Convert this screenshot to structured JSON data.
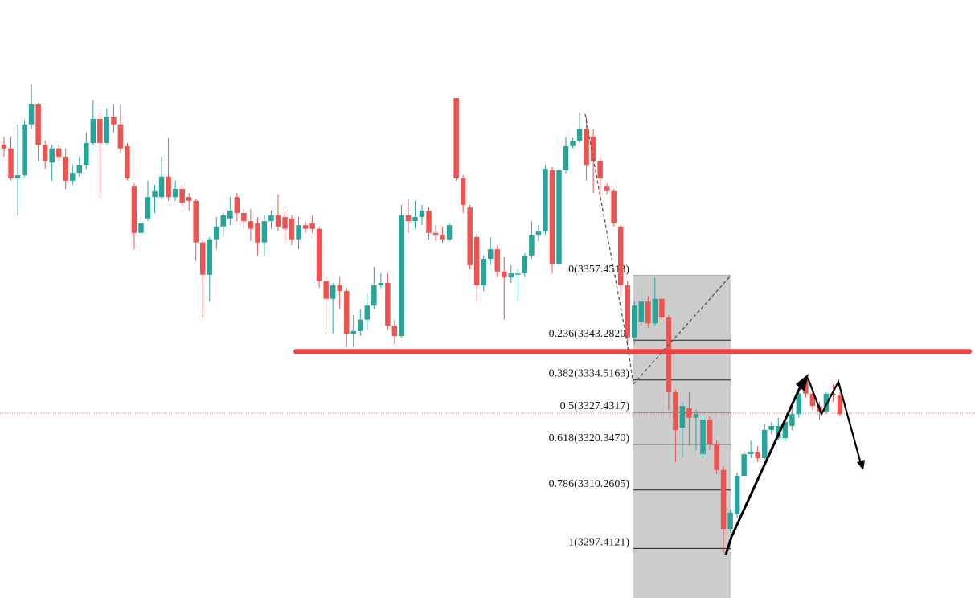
{
  "chart_data": {
    "type": "candlestick",
    "up_color": "#26a69a",
    "down_color": "#ef5350",
    "ylim": [
      3286.5,
      3418.2
    ],
    "open": [
      3386.3,
      3385.5,
      3378.9,
      3379.6,
      3390.8,
      3395.2,
      3386.3,
      3382.4,
      3385.5,
      3383.7,
      3378.4,
      3380.1,
      3381.9,
      3386.7,
      3392.0,
      3386.7,
      3392.5,
      3390.8,
      3386.0,
      3377.1,
      3366.9,
      3370.1,
      3374.8,
      3374.8,
      3379.3,
      3374.8,
      3376.6,
      3374.8,
      3374.0,
      3364.8,
      3357.7,
      3365.5,
      3368.3,
      3370.1,
      3374.8,
      3371.3,
      3369.5,
      3369.0,
      3364.8,
      3369.5,
      3370.8,
      3370.4,
      3370.1,
      3365.5,
      3368.6,
      3369.0,
      3367.8,
      3356.3,
      3352.4,
      3355.4,
      3354.1,
      3344.7,
      3345.3,
      3347.8,
      3350.9,
      3355.4,
      3355.9,
      3346.5,
      3344.2,
      3370.8,
      3369.5,
      3370.4,
      3371.8,
      3366.9,
      3366.5,
      3365.5,
      3396.6,
      3378.9,
      3372.5,
      3366.0,
      3355.4,
      3361.2,
      3363.3,
      3358.4,
      3357.1,
      3357.7,
      3358.0,
      3361.9,
      3366.5,
      3367.2,
      3380.7,
      3360.1,
      3380.7,
      3386.0,
      3387.2,
      3389.9,
      3388.1,
      3382.8,
      3377.1,
      3376.1,
      3368.3,
      3355.4,
      3343.9,
      3347.4,
      3351.8,
      3347.0,
      3352.4,
      3348.3,
      3331.8,
      3324.0,
      3328.3,
      3326.2,
      3318.2,
      3325.8,
      3320.5,
      3314.7,
      3301.7,
      3304.9,
      3313.4,
      3318.2,
      3318.7,
      3317.3,
      3323.5,
      3321.7,
      3321.7,
      3324.4,
      3327.0,
      3335.0,
      3331.5,
      3328.8,
      3327.6,
      3331.5,
      3331.1
    ],
    "high": [
      3388.1,
      3388.1,
      3390.8,
      3391.7,
      3399.6,
      3395.5,
      3387.2,
      3386.3,
      3386.3,
      3385.5,
      3381.9,
      3383.7,
      3389.0,
      3396.1,
      3393.4,
      3394.3,
      3395.2,
      3395.2,
      3386.7,
      3377.8,
      3370.4,
      3378.4,
      3377.5,
      3383.7,
      3387.8,
      3378.4,
      3377.5,
      3375.7,
      3374.3,
      3365.5,
      3366.0,
      3370.4,
      3371.3,
      3374.8,
      3375.7,
      3372.2,
      3372.2,
      3370.4,
      3370.8,
      3371.8,
      3375.4,
      3371.8,
      3370.8,
      3370.4,
      3369.5,
      3370.8,
      3368.3,
      3357.1,
      3355.9,
      3357.1,
      3354.8,
      3348.8,
      3350.1,
      3353.6,
      3359.4,
      3358.0,
      3358.0,
      3347.8,
      3373.1,
      3374.3,
      3374.0,
      3373.1,
      3372.5,
      3368.6,
      3368.3,
      3369.0,
      3396.6,
      3379.6,
      3373.1,
      3366.9,
      3361.9,
      3366.0,
      3364.2,
      3361.6,
      3359.8,
      3358.9,
      3362.4,
      3369.5,
      3368.6,
      3381.9,
      3381.4,
      3388.1,
      3388.1,
      3387.8,
      3393.4,
      3392.5,
      3389.9,
      3383.7,
      3377.8,
      3376.6,
      3368.6,
      3356.3,
      3351.8,
      3354.5,
      3353.1,
      3357.1,
      3353.1,
      3348.8,
      3332.4,
      3329.7,
      3331.8,
      3327.9,
      3327.0,
      3326.5,
      3321.2,
      3315.5,
      3305.8,
      3314.1,
      3319.1,
      3321.2,
      3320.0,
      3324.7,
      3325.3,
      3326.2,
      3326.5,
      3329.7,
      3332.4,
      3335.4,
      3332.4,
      3329.7,
      3331.8,
      3333.6,
      3331.8
    ],
    "low": [
      3383.7,
      3378.4,
      3370.8,
      3379.3,
      3389.9,
      3382.8,
      3381.0,
      3378.4,
      3382.8,
      3376.6,
      3377.5,
      3379.3,
      3381.0,
      3386.3,
      3374.8,
      3386.3,
      3389.0,
      3384.6,
      3378.4,
      3363.3,
      3363.3,
      3369.5,
      3371.3,
      3374.3,
      3374.0,
      3374.0,
      3372.5,
      3371.8,
      3360.7,
      3348.3,
      3351.8,
      3363.3,
      3366.0,
      3368.6,
      3369.5,
      3367.8,
      3365.1,
      3361.9,
      3361.9,
      3367.8,
      3367.2,
      3365.1,
      3364.2,
      3363.3,
      3366.9,
      3366.9,
      3354.8,
      3345.6,
      3344.7,
      3350.1,
      3341.7,
      3341.7,
      3344.2,
      3345.6,
      3350.1,
      3354.8,
      3345.6,
      3342.4,
      3343.9,
      3366.9,
      3367.8,
      3368.6,
      3365.5,
      3365.1,
      3364.8,
      3365.1,
      3378.4,
      3371.3,
      3358.9,
      3351.8,
      3354.1,
      3359.8,
      3357.1,
      3347.8,
      3355.9,
      3351.8,
      3357.1,
      3361.2,
      3365.1,
      3366.5,
      3358.0,
      3359.8,
      3380.1,
      3385.5,
      3386.7,
      3378.4,
      3375.7,
      3374.8,
      3375.4,
      3368.3,
      3352.7,
      3342.1,
      3342.4,
      3346.5,
      3346.0,
      3346.5,
      3347.8,
      3327.9,
      3316.4,
      3317.3,
      3320.0,
      3319.1,
      3317.3,
      3319.1,
      3313.8,
      3296.4,
      3301.0,
      3304.0,
      3312.4,
      3317.3,
      3316.4,
      3317.0,
      3322.6,
      3321.2,
      3320.9,
      3323.5,
      3326.2,
      3330.6,
      3327.9,
      3325.8,
      3327.0,
      3329.7,
      3326.5
    ],
    "close": [
      3385.5,
      3378.9,
      3379.6,
      3390.8,
      3395.2,
      3386.3,
      3382.8,
      3385.5,
      3383.7,
      3378.4,
      3380.1,
      3381.9,
      3386.7,
      3392.0,
      3386.7,
      3392.5,
      3390.8,
      3385.5,
      3378.9,
      3366.9,
      3369.0,
      3374.8,
      3376.1,
      3379.3,
      3374.8,
      3376.6,
      3373.6,
      3374.0,
      3364.8,
      3357.7,
      3365.5,
      3368.3,
      3370.8,
      3371.8,
      3371.3,
      3369.5,
      3367.8,
      3364.8,
      3369.5,
      3370.8,
      3368.3,
      3367.8,
      3365.5,
      3368.6,
      3367.8,
      3367.8,
      3356.3,
      3352.4,
      3355.4,
      3354.1,
      3344.7,
      3345.3,
      3347.8,
      3350.9,
      3355.4,
      3355.9,
      3346.5,
      3344.2,
      3370.8,
      3369.5,
      3370.4,
      3371.8,
      3366.9,
      3366.5,
      3365.5,
      3368.6,
      3378.9,
      3373.1,
      3359.8,
      3355.4,
      3361.2,
      3363.3,
      3358.4,
      3357.1,
      3358.0,
      3358.0,
      3361.9,
      3366.5,
      3367.2,
      3381.0,
      3360.1,
      3380.7,
      3386.0,
      3387.2,
      3389.9,
      3381.9,
      3382.8,
      3378.9,
      3376.1,
      3369.0,
      3355.4,
      3343.9,
      3350.9,
      3351.8,
      3347.0,
      3352.4,
      3348.3,
      3331.8,
      3323.5,
      3328.8,
      3326.2,
      3327.0,
      3325.8,
      3320.5,
      3314.7,
      3301.7,
      3305.3,
      3313.4,
      3318.2,
      3318.7,
      3317.3,
      3323.5,
      3324.4,
      3324.4,
      3325.3,
      3327.0,
      3331.5,
      3331.5,
      3328.8,
      3327.6,
      3331.5,
      3331.1,
      3327.0
    ],
    "fib_levels": [
      {
        "value": 3357.4513,
        "label": "0(3357.4513)"
      },
      {
        "value": 3343.282,
        "label": "0.236(3343.2820)"
      },
      {
        "value": 3334.5163,
        "label": "0.382(3334.5163)"
      },
      {
        "value": 3327.4317,
        "label": "0.5(3327.4317)"
      },
      {
        "value": 3320.347,
        "label": "0.618(3320.3470)"
      },
      {
        "value": 3310.2605,
        "label": "0.786(3310.2605)"
      },
      {
        "value": 3297.4121,
        "label": "1(3297.4121)"
      }
    ],
    "support_line": {
      "value": 3340.8,
      "color": "#f23f3f"
    },
    "last_price_line": {
      "value": 3327.2,
      "color": "#ef5350"
    }
  }
}
